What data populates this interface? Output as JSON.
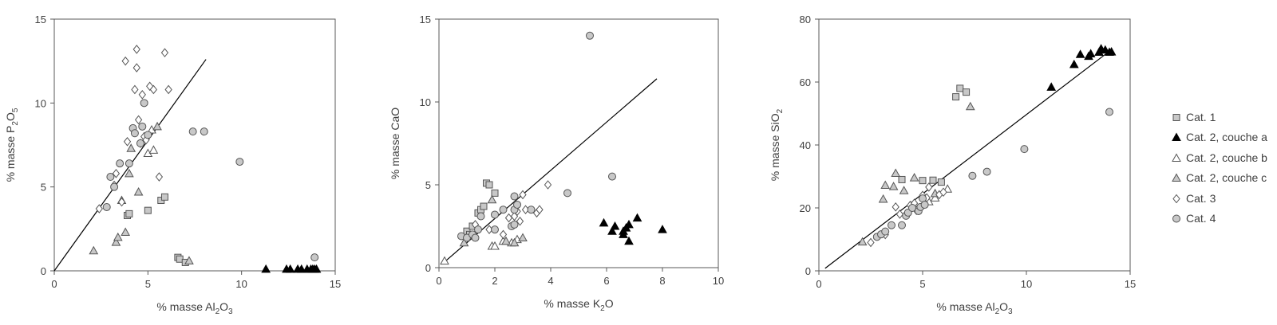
{
  "styles": {
    "axis_color": "#595959",
    "text_color": "#404040",
    "marker_gray": "#c8c8c8",
    "marker_dark": "#000000",
    "marker_white": "#ffffff",
    "marker_edge": "#555555"
  },
  "legend": {
    "items": [
      {
        "series": "cat1",
        "label": "Cat. 1",
        "marker": "square",
        "fill": "#c8c8c8"
      },
      {
        "series": "cat2a",
        "label": "Cat. 2, couche a",
        "marker": "triangle",
        "fill": "#000000"
      },
      {
        "series": "cat2b",
        "label": "Cat. 2, couche b",
        "marker": "triangle",
        "fill": "#ffffff"
      },
      {
        "series": "cat2c",
        "label": "Cat. 2, couche c",
        "marker": "triangle",
        "fill": "#c8c8c8"
      },
      {
        "series": "cat3",
        "label": "Cat. 3",
        "marker": "diamond",
        "fill": "#ffffff"
      },
      {
        "series": "cat4",
        "label": "Cat. 4",
        "marker": "circle",
        "fill": "#c8c8c8"
      }
    ]
  },
  "chart_data": [
    {
      "type": "scatter",
      "xlabel": "% masse Al2O3",
      "ylabel": "% masse P2O5",
      "xlabel_parts": [
        "% masse Al",
        "2",
        "O",
        "3"
      ],
      "ylabel_parts": [
        "% masse P",
        "2",
        "O",
        "5"
      ],
      "xlim": [
        0,
        15
      ],
      "ylim": [
        0,
        15
      ],
      "xticks": [
        0,
        5,
        10,
        15
      ],
      "yticks": [
        0,
        5,
        10,
        15
      ],
      "trendline": {
        "x": [
          0,
          8.1
        ],
        "y": [
          0,
          12.6
        ]
      },
      "series": [
        {
          "id": "cat1",
          "points": [
            [
              3.9,
              3.3
            ],
            [
              4.0,
              3.4
            ],
            [
              5.0,
              3.6
            ],
            [
              5.7,
              4.2
            ],
            [
              5.9,
              4.4
            ],
            [
              6.6,
              0.8
            ],
            [
              6.7,
              0.7
            ],
            [
              7.0,
              0.5
            ]
          ]
        },
        {
          "id": "cat2a",
          "points": [
            [
              11.3,
              0.1
            ],
            [
              12.4,
              0.1
            ],
            [
              12.6,
              0.1
            ],
            [
              13.0,
              0.1
            ],
            [
              13.2,
              0.1
            ],
            [
              13.5,
              0.1
            ],
            [
              13.7,
              0.1
            ],
            [
              13.8,
              0.1
            ],
            [
              13.9,
              0.1
            ],
            [
              14.0,
              0.1
            ]
          ]
        },
        {
          "id": "cat2b",
          "points": [
            [
              5.0,
              7.0
            ],
            [
              5.2,
              8.4
            ],
            [
              5.3,
              7.2
            ]
          ]
        },
        {
          "id": "cat2c",
          "points": [
            [
              2.1,
              1.2
            ],
            [
              3.3,
              1.7
            ],
            [
              3.4,
              2.0
            ],
            [
              3.6,
              4.2
            ],
            [
              3.8,
              2.3
            ],
            [
              4.0,
              5.8
            ],
            [
              4.1,
              7.3
            ],
            [
              4.5,
              4.7
            ],
            [
              5.5,
              8.6
            ],
            [
              7.2,
              0.6
            ]
          ]
        },
        {
          "id": "cat3",
          "points": [
            [
              2.4,
              3.7
            ],
            [
              3.2,
              5.1
            ],
            [
              3.3,
              5.8
            ],
            [
              3.6,
              4.1
            ],
            [
              3.8,
              12.5
            ],
            [
              3.9,
              7.7
            ],
            [
              4.3,
              10.8
            ],
            [
              4.4,
              13.2
            ],
            [
              4.4,
              12.1
            ],
            [
              4.5,
              9.0
            ],
            [
              4.7,
              10.5
            ],
            [
              4.8,
              8.0
            ],
            [
              5.1,
              11.0
            ],
            [
              5.3,
              10.8
            ],
            [
              5.6,
              5.6
            ],
            [
              5.9,
              13.0
            ],
            [
              6.1,
              10.8
            ],
            [
              4.9,
              7.8
            ],
            [
              4.6,
              7.6
            ]
          ]
        },
        {
          "id": "cat4",
          "points": [
            [
              2.8,
              3.8
            ],
            [
              3.0,
              5.6
            ],
            [
              3.2,
              5.0
            ],
            [
              3.5,
              6.4
            ],
            [
              4.0,
              6.4
            ],
            [
              4.2,
              8.5
            ],
            [
              4.3,
              8.2
            ],
            [
              4.7,
              8.6
            ],
            [
              4.8,
              10.0
            ],
            [
              4.6,
              7.6
            ],
            [
              5.0,
              8.1
            ],
            [
              7.4,
              8.3
            ],
            [
              8.0,
              8.3
            ],
            [
              9.9,
              6.5
            ],
            [
              13.9,
              0.8
            ]
          ]
        }
      ]
    },
    {
      "type": "scatter",
      "xlabel": "% masse K2O",
      "ylabel": "% masse CaO",
      "xlabel_parts": [
        "% masse K",
        "2",
        "O",
        ""
      ],
      "ylabel_parts": [
        "% masse CaO",
        "",
        "",
        ""
      ],
      "xlim": [
        0,
        10
      ],
      "ylim": [
        0,
        15
      ],
      "xticks": [
        0,
        2,
        4,
        6,
        8,
        10
      ],
      "yticks": [
        0,
        5,
        10,
        15
      ],
      "trendline": {
        "x": [
          0.1,
          7.8
        ],
        "y": [
          0.2,
          11.4
        ]
      },
      "series": [
        {
          "id": "cat1",
          "points": [
            [
              1.0,
              2.2
            ],
            [
              1.1,
              2.0
            ],
            [
              1.2,
              2.5
            ],
            [
              1.4,
              3.3
            ],
            [
              1.5,
              3.5
            ],
            [
              1.6,
              3.7
            ],
            [
              1.7,
              5.1
            ],
            [
              1.8,
              5.0
            ],
            [
              2.0,
              4.5
            ]
          ]
        },
        {
          "id": "cat2a",
          "points": [
            [
              5.9,
              2.7
            ],
            [
              6.2,
              2.2
            ],
            [
              6.3,
              2.5
            ],
            [
              6.6,
              2.2
            ],
            [
              6.6,
              2.0
            ],
            [
              6.7,
              2.4
            ],
            [
              6.8,
              2.6
            ],
            [
              6.8,
              1.6
            ],
            [
              7.1,
              3.0
            ],
            [
              8.0,
              2.3
            ]
          ]
        },
        {
          "id": "cat2b",
          "points": [
            [
              0.2,
              0.4
            ],
            [
              1.9,
              1.3
            ],
            [
              2.0,
              1.3
            ],
            [
              2.3,
              1.6
            ],
            [
              2.6,
              1.5
            ],
            [
              2.8,
              1.7
            ]
          ]
        },
        {
          "id": "cat2c",
          "points": [
            [
              0.9,
              1.5
            ],
            [
              1.9,
              4.1
            ],
            [
              2.4,
              1.6
            ],
            [
              2.7,
              1.5
            ],
            [
              3.0,
              1.8
            ]
          ]
        },
        {
          "id": "cat3",
          "points": [
            [
              1.3,
              2.6
            ],
            [
              1.8,
              2.3
            ],
            [
              2.3,
              2.0
            ],
            [
              2.5,
              3.0
            ],
            [
              2.7,
              3.1
            ],
            [
              2.8,
              3.4
            ],
            [
              2.9,
              2.8
            ],
            [
              3.0,
              4.4
            ],
            [
              3.1,
              3.5
            ],
            [
              3.5,
              3.3
            ],
            [
              3.6,
              3.5
            ],
            [
              3.9,
              5.0
            ]
          ]
        },
        {
          "id": "cat4",
          "points": [
            [
              0.8,
              1.9
            ],
            [
              1.0,
              1.8
            ],
            [
              1.2,
              2.0
            ],
            [
              1.3,
              1.8
            ],
            [
              1.4,
              2.3
            ],
            [
              1.5,
              3.1
            ],
            [
              2.0,
              2.3
            ],
            [
              2.0,
              3.2
            ],
            [
              2.3,
              3.5
            ],
            [
              2.6,
              2.5
            ],
            [
              2.7,
              2.6
            ],
            [
              2.7,
              4.3
            ],
            [
              2.7,
              3.5
            ],
            [
              2.8,
              3.8
            ],
            [
              3.3,
              3.5
            ],
            [
              4.6,
              4.5
            ],
            [
              5.4,
              14.0
            ],
            [
              6.2,
              5.5
            ]
          ]
        }
      ]
    },
    {
      "type": "scatter",
      "xlabel": "% masse Al2O3",
      "ylabel": "% masse SiO2",
      "xlabel_parts": [
        "% masse Al",
        "2",
        "O",
        "3"
      ],
      "ylabel_parts": [
        "% masse SiO",
        "2",
        "",
        ""
      ],
      "xlim": [
        0,
        15
      ],
      "ylim": [
        0,
        80
      ],
      "xticks": [
        0,
        5,
        10,
        15
      ],
      "yticks": [
        0,
        20,
        40,
        60,
        80
      ],
      "trendline": {
        "x": [
          0.3,
          14.0
        ],
        "y": [
          0.8,
          69.8
        ]
      },
      "series": [
        {
          "id": "cat1",
          "points": [
            [
              4.0,
              29.0
            ],
            [
              5.0,
              28.7
            ],
            [
              5.5,
              28.8
            ],
            [
              5.9,
              28.2
            ],
            [
              6.6,
              55.3
            ],
            [
              6.8,
              58.0
            ],
            [
              7.1,
              56.8
            ]
          ]
        },
        {
          "id": "cat2a",
          "points": [
            [
              11.2,
              58.4
            ],
            [
              12.3,
              65.6
            ],
            [
              12.6,
              68.8
            ],
            [
              13.0,
              68.2
            ],
            [
              13.1,
              69.0
            ],
            [
              13.5,
              69.5
            ],
            [
              13.6,
              70.6
            ],
            [
              13.8,
              70.2
            ],
            [
              14.0,
              69.5
            ],
            [
              14.1,
              69.6
            ]
          ]
        },
        {
          "id": "cat2b",
          "points": [
            [
              5.3,
              22.0
            ],
            [
              5.6,
              23.2
            ],
            [
              6.2,
              26.0
            ]
          ]
        },
        {
          "id": "cat2c",
          "points": [
            [
              2.1,
              9.2
            ],
            [
              3.1,
              22.8
            ],
            [
              3.2,
              27.2
            ],
            [
              3.6,
              26.8
            ],
            [
              3.7,
              31.0
            ],
            [
              4.1,
              25.5
            ],
            [
              4.6,
              29.6
            ],
            [
              5.6,
              24.6
            ],
            [
              7.3,
              52.2
            ]
          ]
        },
        {
          "id": "cat3",
          "points": [
            [
              2.5,
              9.0
            ],
            [
              3.2,
              11.5
            ],
            [
              3.7,
              20.3
            ],
            [
              3.9,
              18.0
            ],
            [
              4.2,
              18.0
            ],
            [
              4.4,
              20.8
            ],
            [
              4.6,
              21.5
            ],
            [
              4.7,
              19.2
            ],
            [
              5.0,
              24.0
            ],
            [
              5.2,
              23.2
            ],
            [
              5.3,
              26.6
            ],
            [
              5.8,
              24.2
            ],
            [
              6.0,
              25.0
            ]
          ]
        },
        {
          "id": "cat4",
          "points": [
            [
              2.8,
              10.8
            ],
            [
              3.0,
              11.6
            ],
            [
              3.2,
              12.5
            ],
            [
              3.5,
              14.5
            ],
            [
              4.0,
              14.5
            ],
            [
              4.2,
              17.5
            ],
            [
              4.3,
              18.5
            ],
            [
              4.5,
              20.0
            ],
            [
              4.8,
              19.0
            ],
            [
              4.9,
              20.3
            ],
            [
              5.0,
              23.0
            ],
            [
              5.1,
              21.0
            ],
            [
              7.4,
              30.2
            ],
            [
              8.1,
              31.5
            ],
            [
              9.9,
              38.7
            ],
            [
              14.0,
              50.5
            ]
          ]
        }
      ]
    }
  ]
}
